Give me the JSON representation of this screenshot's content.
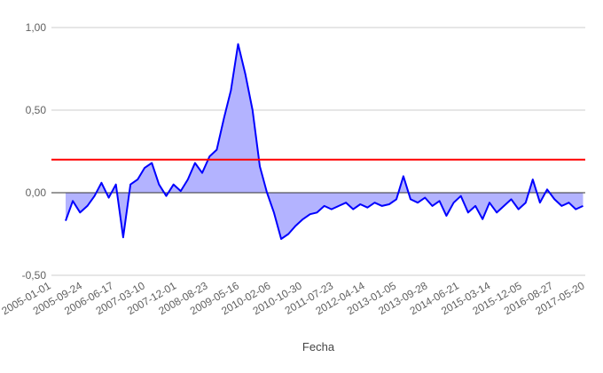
{
  "chart_data": {
    "type": "area",
    "title": "",
    "xlabel": "Fecha",
    "ylabel": "",
    "ylim": [
      -0.5,
      1.0
    ],
    "y_ticks": [
      "-0,50",
      "0,00",
      "0,50",
      "1,00"
    ],
    "y_tick_values": [
      -0.5,
      0.0,
      0.5,
      1.0
    ],
    "x_tick_labels": [
      "2005-01-01",
      "2005-09-24",
      "2006-06-17",
      "2007-03-10",
      "2007-12-01",
      "2008-08-23",
      "2009-05-16",
      "2010-02-06",
      "2010-10-30",
      "2011-07-23",
      "2012-04-14",
      "2013-01-05",
      "2013-09-28",
      "2014-06-21",
      "2015-03-14",
      "2015-12-05",
      "2016-08-27",
      "2017-05-20"
    ],
    "grid": true,
    "legend": "none",
    "threshold": {
      "value": 0.2,
      "color": "#ff0000"
    },
    "series": [
      {
        "color": "#0000ff",
        "fill": "#b3b3ff",
        "x": [
          "2005-05-01",
          "2005-07-01",
          "2005-09-01",
          "2005-11-01",
          "2006-01-01",
          "2006-03-01",
          "2006-05-01",
          "2006-07-01",
          "2006-09-01",
          "2006-11-01",
          "2007-01-01",
          "2007-03-01",
          "2007-05-01",
          "2007-07-01",
          "2007-09-01",
          "2007-11-01",
          "2008-01-01",
          "2008-03-01",
          "2008-05-01",
          "2008-07-01",
          "2008-09-01",
          "2008-11-01",
          "2009-01-01",
          "2009-03-01",
          "2009-05-01",
          "2009-07-01",
          "2009-09-01",
          "2009-11-01",
          "2010-01-01",
          "2010-03-01",
          "2010-05-01",
          "2010-07-01",
          "2010-09-01",
          "2010-11-01",
          "2011-01-01",
          "2011-03-01",
          "2011-05-01",
          "2011-07-01",
          "2011-09-01",
          "2011-11-01",
          "2012-01-01",
          "2012-03-01",
          "2012-05-01",
          "2012-07-01",
          "2012-09-01",
          "2012-11-01",
          "2013-01-01",
          "2013-03-01",
          "2013-05-01",
          "2013-07-01",
          "2013-09-01",
          "2013-11-01",
          "2014-01-01",
          "2014-03-01",
          "2014-05-01",
          "2014-07-01",
          "2014-09-01",
          "2014-11-01",
          "2015-01-01",
          "2015-03-01",
          "2015-05-01",
          "2015-07-01",
          "2015-09-01",
          "2015-11-01",
          "2016-01-01",
          "2016-03-01",
          "2016-05-01",
          "2016-07-01",
          "2016-09-01",
          "2016-11-01",
          "2017-01-01",
          "2017-03-01",
          "2017-05-01"
        ],
        "values": [
          -0.17,
          -0.05,
          -0.12,
          -0.08,
          -0.02,
          0.06,
          -0.03,
          0.05,
          -0.27,
          0.05,
          0.08,
          0.15,
          0.18,
          0.05,
          -0.02,
          0.05,
          0.01,
          0.08,
          0.18,
          0.12,
          0.22,
          0.26,
          0.45,
          0.62,
          0.9,
          0.72,
          0.5,
          0.16,
          0.0,
          -0.12,
          -0.28,
          -0.25,
          -0.2,
          -0.16,
          -0.13,
          -0.12,
          -0.08,
          -0.1,
          -0.08,
          -0.06,
          -0.1,
          -0.07,
          -0.09,
          -0.06,
          -0.08,
          -0.07,
          -0.04,
          0.1,
          -0.04,
          -0.06,
          -0.03,
          -0.08,
          -0.05,
          -0.14,
          -0.06,
          -0.02,
          -0.12,
          -0.08,
          -0.16,
          -0.06,
          -0.12,
          -0.08,
          -0.04,
          -0.1,
          -0.06,
          0.08,
          -0.06,
          0.02,
          -0.04,
          -0.08,
          -0.06,
          -0.1,
          -0.08
        ]
      }
    ]
  }
}
